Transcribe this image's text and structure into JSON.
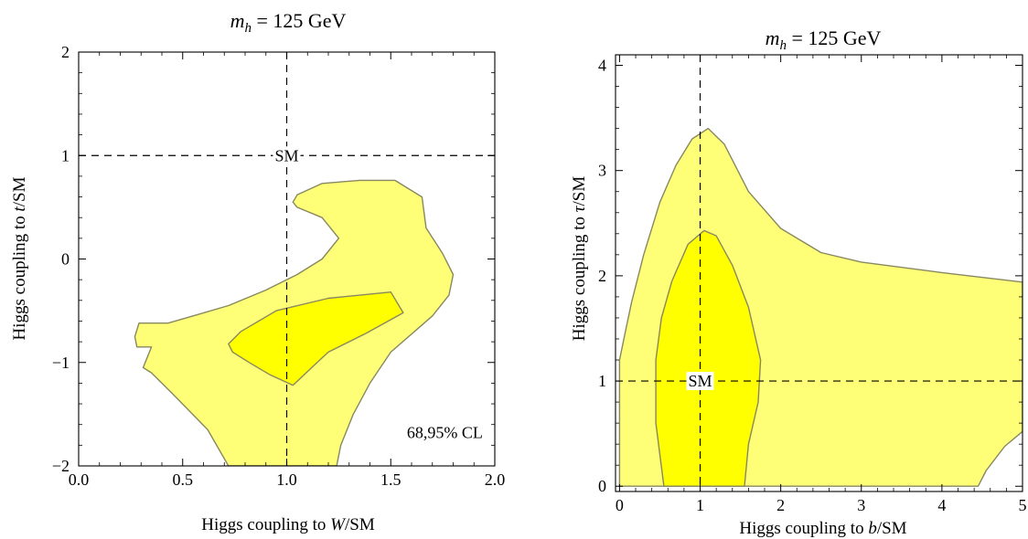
{
  "chart_data": [
    {
      "type": "contour",
      "title_var": "m",
      "title_sub": "h",
      "title_rest": " = 125 GeV",
      "xlabel_pre": "Higgs coupling to ",
      "xlabel_var": "W",
      "xlabel_post": "/SM",
      "ylabel_pre": "Higgs coupling to ",
      "ylabel_var": "t",
      "ylabel_post": "/SM",
      "xlim": [
        0.0,
        2.0
      ],
      "ylim": [
        -2,
        2
      ],
      "xticks": [
        0.0,
        0.5,
        1.0,
        1.5,
        2.0
      ],
      "xtick_labels": [
        "0.0",
        "0.5",
        "1.0",
        "1.5",
        "2.0"
      ],
      "yticks": [
        -2,
        -1,
        0,
        1,
        2
      ],
      "ytick_labels": [
        "−2",
        "−1",
        "0",
        "1",
        "2"
      ],
      "sm_point": {
        "x": 1.0,
        "y": 1.0,
        "label": "SM"
      },
      "annotation": "68,95% CL",
      "colors": {
        "region_95": "#ffff77",
        "region_68": "#ffff00",
        "outline": "#888860"
      },
      "regions": [
        {
          "level": "95%",
          "points": [
            [
              0.72,
              -2.0
            ],
            [
              0.62,
              -1.65
            ],
            [
              0.45,
              -1.3
            ],
            [
              0.35,
              -1.1
            ],
            [
              0.31,
              -1.05
            ],
            [
              0.35,
              -0.85
            ],
            [
              0.28,
              -0.85
            ],
            [
              0.27,
              -0.75
            ],
            [
              0.29,
              -0.62
            ],
            [
              0.43,
              -0.62
            ],
            [
              0.55,
              -0.55
            ],
            [
              0.72,
              -0.45
            ],
            [
              0.9,
              -0.3
            ],
            [
              1.05,
              -0.15
            ],
            [
              1.17,
              0.0
            ],
            [
              1.25,
              0.2
            ],
            [
              1.17,
              0.4
            ],
            [
              1.05,
              0.5
            ],
            [
              1.03,
              0.55
            ],
            [
              1.05,
              0.62
            ],
            [
              1.17,
              0.73
            ],
            [
              1.35,
              0.76
            ],
            [
              1.52,
              0.76
            ],
            [
              1.65,
              0.6
            ],
            [
              1.67,
              0.3
            ],
            [
              1.75,
              0.05
            ],
            [
              1.8,
              -0.15
            ],
            [
              1.78,
              -0.35
            ],
            [
              1.7,
              -0.55
            ],
            [
              1.5,
              -0.9
            ],
            [
              1.4,
              -1.2
            ],
            [
              1.32,
              -1.5
            ],
            [
              1.26,
              -1.8
            ],
            [
              1.24,
              -2.0
            ]
          ]
        },
        {
          "level": "68%",
          "points": [
            [
              0.72,
              -0.82
            ],
            [
              0.78,
              -0.7
            ],
            [
              0.95,
              -0.5
            ],
            [
              1.2,
              -0.38
            ],
            [
              1.5,
              -0.32
            ],
            [
              1.56,
              -0.52
            ],
            [
              1.38,
              -0.72
            ],
            [
              1.2,
              -0.9
            ],
            [
              1.12,
              -1.05
            ],
            [
              1.03,
              -1.22
            ],
            [
              0.92,
              -1.12
            ],
            [
              0.82,
              -1.0
            ],
            [
              0.74,
              -0.9
            ]
          ]
        }
      ]
    },
    {
      "type": "contour",
      "title_var": "m",
      "title_sub": "h",
      "title_rest": " = 125 GeV",
      "xlabel_pre": "Higgs coupling to ",
      "xlabel_var": "b",
      "xlabel_post": "/SM",
      "ylabel_pre": "Higgs coupling to ",
      "ylabel_var": "τ",
      "ylabel_post": "/SM",
      "xlim": [
        -0.05,
        5.0
      ],
      "ylim": [
        -0.05,
        4.1
      ],
      "xticks": [
        0,
        1,
        2,
        3,
        4,
        5
      ],
      "xtick_labels": [
        "0",
        "1",
        "2",
        "3",
        "4",
        "5"
      ],
      "yticks": [
        0,
        1,
        2,
        3,
        4
      ],
      "ytick_labels": [
        "0",
        "1",
        "2",
        "3",
        "4"
      ],
      "sm_point": {
        "x": 1.0,
        "y": 1.0,
        "label": "SM"
      },
      "colors": {
        "region_95": "#ffff77",
        "region_68": "#ffff00",
        "outline": "#888860"
      },
      "regions": [
        {
          "level": "95%",
          "points": [
            [
              0.0,
              0.0
            ],
            [
              0.0,
              1.2
            ],
            [
              0.08,
              1.5
            ],
            [
              0.15,
              1.75
            ],
            [
              0.3,
              2.2
            ],
            [
              0.5,
              2.7
            ],
            [
              0.7,
              3.05
            ],
            [
              0.9,
              3.3
            ],
            [
              1.1,
              3.4
            ],
            [
              1.3,
              3.25
            ],
            [
              1.6,
              2.8
            ],
            [
              2.0,
              2.45
            ],
            [
              2.5,
              2.22
            ],
            [
              3.0,
              2.13
            ],
            [
              4.0,
              2.03
            ],
            [
              5.0,
              1.94
            ],
            [
              5.0,
              0.52
            ],
            [
              4.78,
              0.38
            ],
            [
              4.55,
              0.15
            ],
            [
              4.45,
              0.0
            ]
          ]
        },
        {
          "level": "68%",
          "points": [
            [
              0.55,
              0.0
            ],
            [
              0.45,
              0.6
            ],
            [
              0.45,
              1.2
            ],
            [
              0.52,
              1.6
            ],
            [
              0.65,
              1.95
            ],
            [
              0.85,
              2.3
            ],
            [
              1.05,
              2.43
            ],
            [
              1.2,
              2.38
            ],
            [
              1.4,
              2.1
            ],
            [
              1.6,
              1.7
            ],
            [
              1.75,
              1.2
            ],
            [
              1.72,
              0.8
            ],
            [
              1.6,
              0.4
            ],
            [
              1.55,
              0.0
            ]
          ]
        }
      ]
    }
  ]
}
